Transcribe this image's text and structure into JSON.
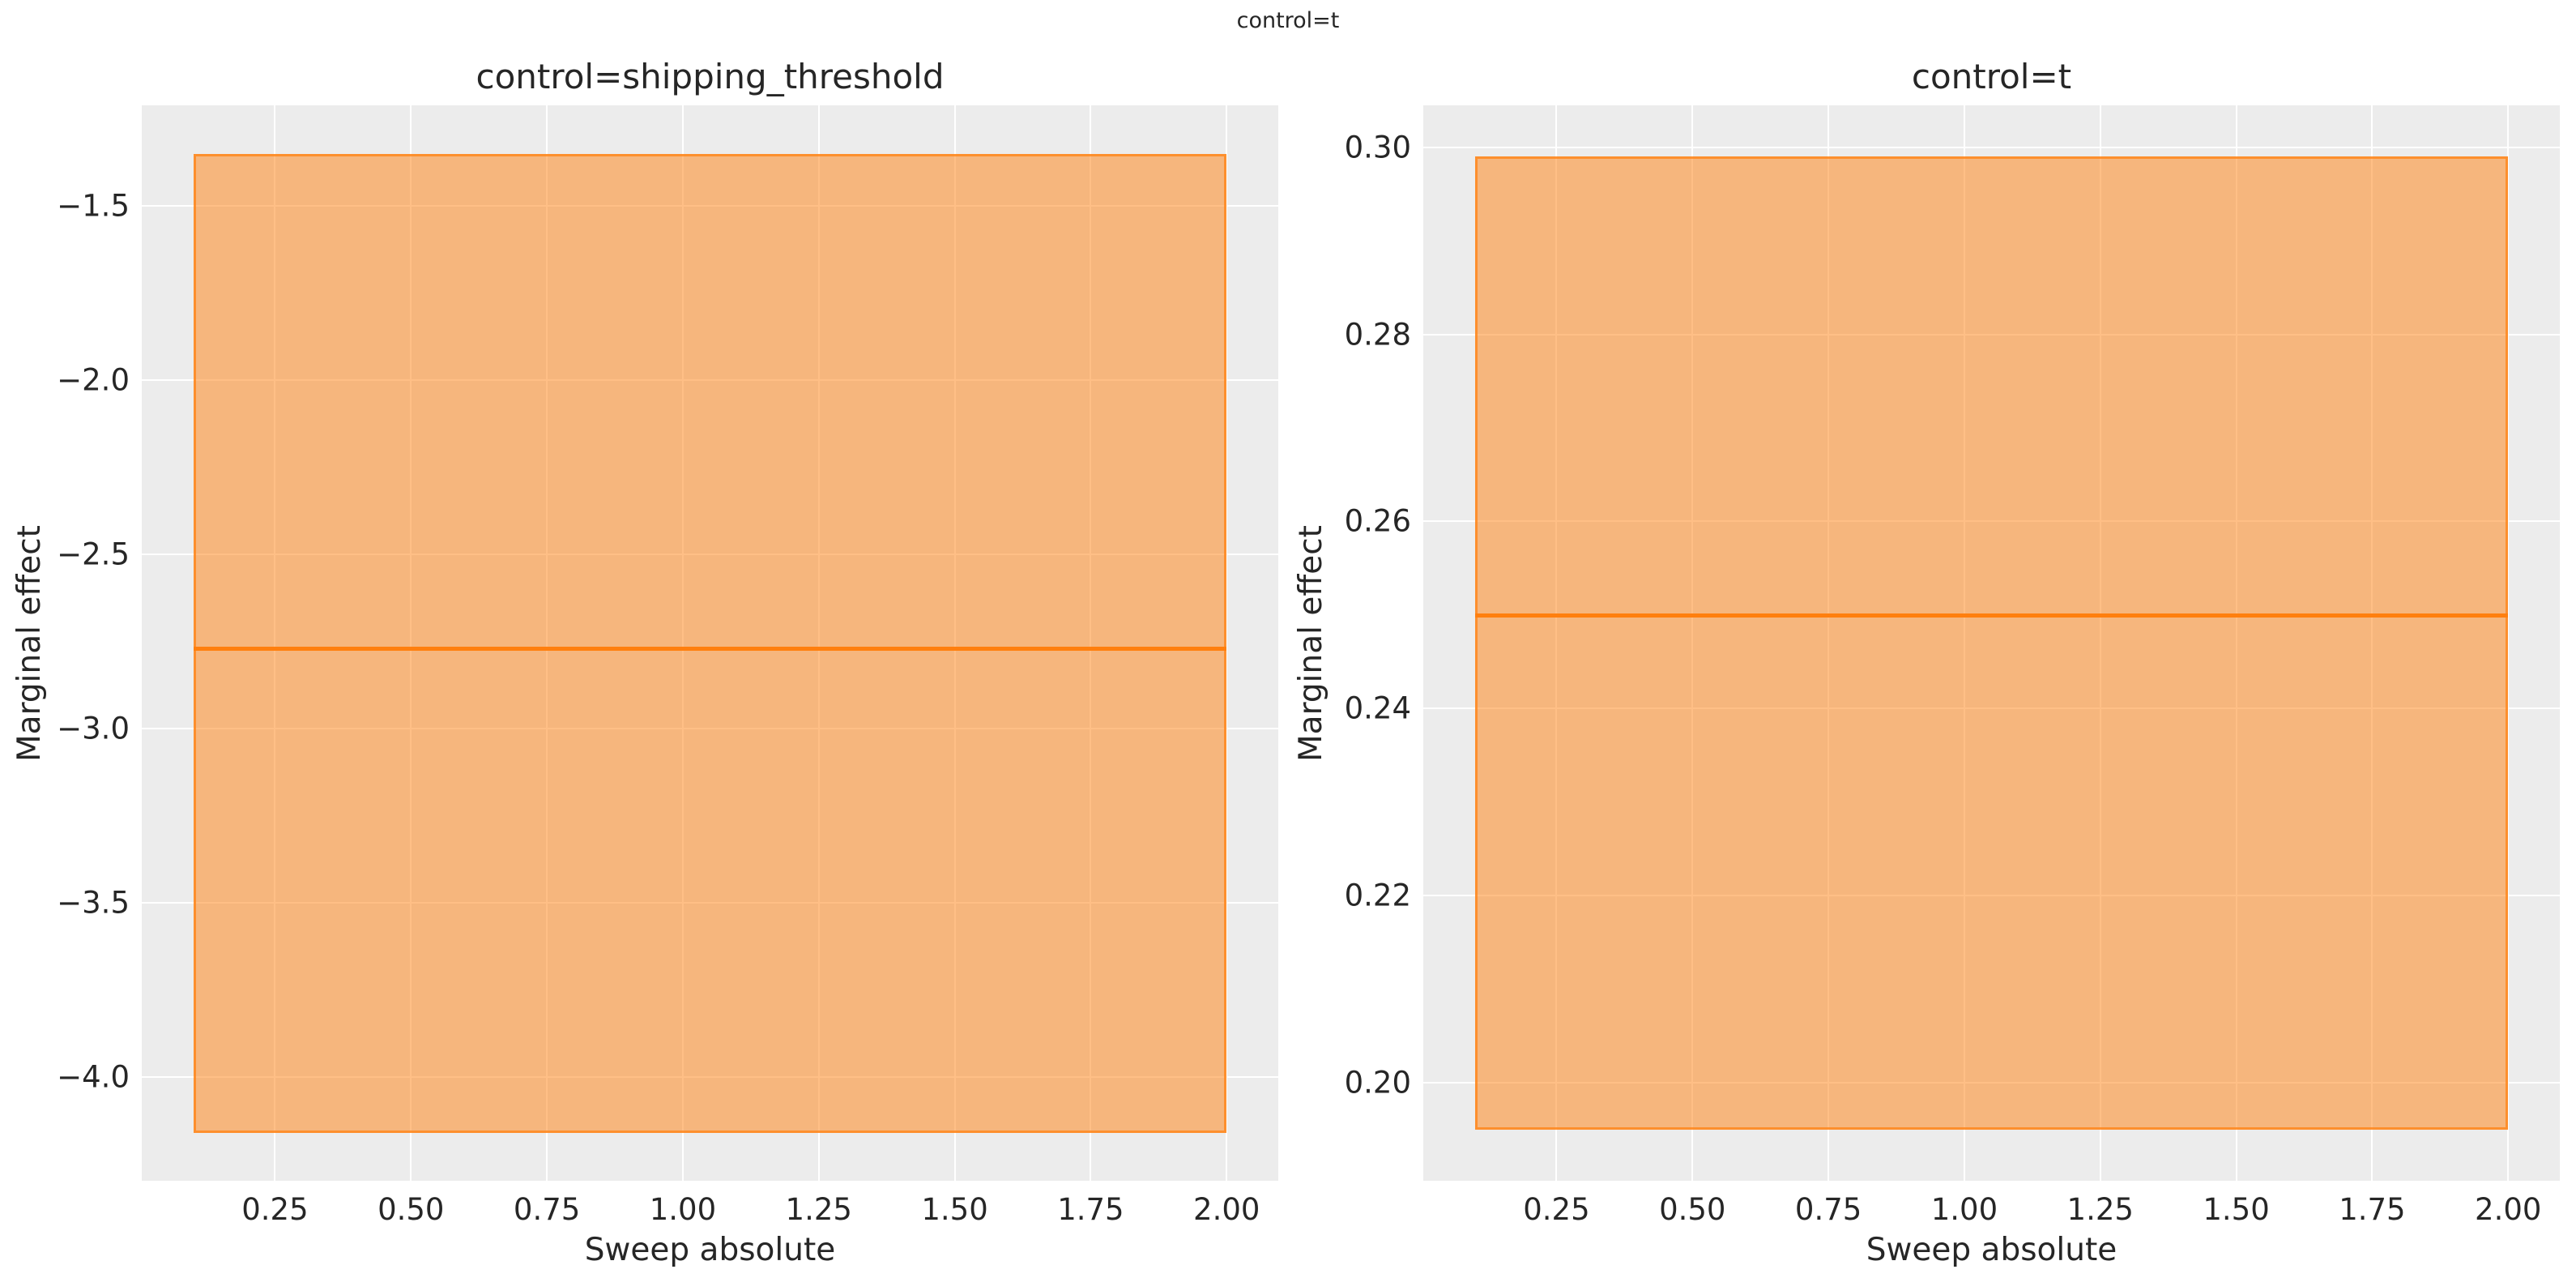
{
  "figure": {
    "suptitle": "control=t",
    "colors": {
      "accent": "#FF7F0E",
      "band_fill": "rgba(255,127,14,0.5)",
      "band_edge": "rgba(255,127,14,0.72)",
      "panel_bg": "#ECECEC",
      "gridline": "#FFFFFF",
      "text": "#262626"
    }
  },
  "chart_data": [
    {
      "type": "area",
      "title": "control=shipping_threshold",
      "xlabel": "Sweep absolute",
      "ylabel": "Marginal effect",
      "grid": true,
      "legend": "none",
      "x_range": [
        0.1,
        2.0
      ],
      "line_value": -2.77,
      "band": [
        -4.16,
        -1.35
      ],
      "series": [
        {
          "name": "marginal-effect-mean",
          "x": [
            0.1,
            2.0
          ],
          "values": [
            -2.77,
            -2.77
          ]
        },
        {
          "name": "ci-band-low",
          "x": [
            0.1,
            2.0
          ],
          "values": [
            -4.16,
            -4.16
          ]
        },
        {
          "name": "ci-band-high",
          "x": [
            0.1,
            2.0
          ],
          "values": [
            -1.35,
            -1.35
          ]
        }
      ],
      "xlim": [
        0.005,
        2.095
      ],
      "ylim": [
        -4.298,
        -1.211
      ],
      "xticks": [
        0.25,
        0.5,
        0.75,
        1.0,
        1.25,
        1.5,
        1.75,
        2.0
      ],
      "xtick_labels": [
        "0.25",
        "0.50",
        "0.75",
        "1.00",
        "1.25",
        "1.50",
        "1.75",
        "2.00"
      ],
      "yticks": [
        -1.5,
        -2.0,
        -2.5,
        -3.0,
        -3.5,
        -4.0
      ],
      "ytick_labels": [
        "−1.5",
        "−2.0",
        "−2.5",
        "−3.0",
        "−3.5",
        "−4.0"
      ]
    },
    {
      "type": "area",
      "title": "control=t",
      "xlabel": "Sweep absolute",
      "ylabel": "Marginal effect",
      "grid": true,
      "legend": "none",
      "x_range": [
        0.1,
        2.0
      ],
      "line_value": 0.25,
      "band": [
        0.195,
        0.299
      ],
      "series": [
        {
          "name": "marginal-effect-mean",
          "x": [
            0.1,
            2.0
          ],
          "values": [
            0.25,
            0.25
          ]
        },
        {
          "name": "ci-band-low",
          "x": [
            0.1,
            2.0
          ],
          "values": [
            0.195,
            0.195
          ]
        },
        {
          "name": "ci-band-high",
          "x": [
            0.1,
            2.0
          ],
          "values": [
            0.299,
            0.299
          ]
        }
      ],
      "xlim": [
        0.005,
        2.095
      ],
      "ylim": [
        0.1895,
        0.3045
      ],
      "xticks": [
        0.25,
        0.5,
        0.75,
        1.0,
        1.25,
        1.5,
        1.75,
        2.0
      ],
      "xtick_labels": [
        "0.25",
        "0.50",
        "0.75",
        "1.00",
        "1.25",
        "1.50",
        "1.75",
        "2.00"
      ],
      "yticks": [
        0.3,
        0.28,
        0.26,
        0.24,
        0.22,
        0.2
      ],
      "ytick_labels": [
        "0.30",
        "0.28",
        "0.26",
        "0.24",
        "0.22",
        "0.20"
      ]
    }
  ]
}
